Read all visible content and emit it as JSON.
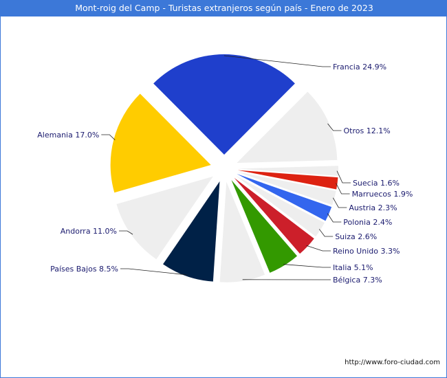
{
  "chart_data": {
    "type": "pie",
    "title": "Mont-roig del Camp - Turistas extranjeros según país - Enero de 2023",
    "source": "http://www.foro-ciudad.com",
    "slices": [
      {
        "name": "Francia",
        "label": "Francia 24.9%",
        "value": 24.9,
        "color": "#1f3fcc"
      },
      {
        "name": "Otros",
        "label": "Otros 12.1%",
        "value": 12.1,
        "color": "#eeeeee"
      },
      {
        "name": "Suecia",
        "label": "Suecia 1.6%",
        "value": 1.6,
        "color": "#eeeeee"
      },
      {
        "name": "Marruecos",
        "label": "Marruecos 1.9%",
        "value": 1.9,
        "color": "#dd2211"
      },
      {
        "name": "Austria",
        "label": "Austria 2.3%",
        "value": 2.3,
        "color": "#eeeeee"
      },
      {
        "name": "Polonia",
        "label": "Polonia 2.4%",
        "value": 2.4,
        "color": "#3366ee"
      },
      {
        "name": "Suiza",
        "label": "Suiza 2.6%",
        "value": 2.6,
        "color": "#eeeeee"
      },
      {
        "name": "Reino Unido",
        "label": "Reino Unido 3.3%",
        "value": 3.3,
        "color": "#cc1f2a"
      },
      {
        "name": "Italia",
        "label": "Italia 5.1%",
        "value": 5.1,
        "color": "#339900"
      },
      {
        "name": "Bélgica",
        "label": "Bélgica 7.3%",
        "value": 7.3,
        "color": "#eeeeee"
      },
      {
        "name": "Países Bajos",
        "label": "Países Bajos 8.5%",
        "value": 8.5,
        "color": "#002147"
      },
      {
        "name": "Andorra",
        "label": "Andorra 11.0%",
        "value": 11.0,
        "color": "#eeeeee"
      },
      {
        "name": "Alemania",
        "label": "Alemania 17.0%",
        "value": 17.0,
        "color": "#ffcc00"
      }
    ]
  }
}
